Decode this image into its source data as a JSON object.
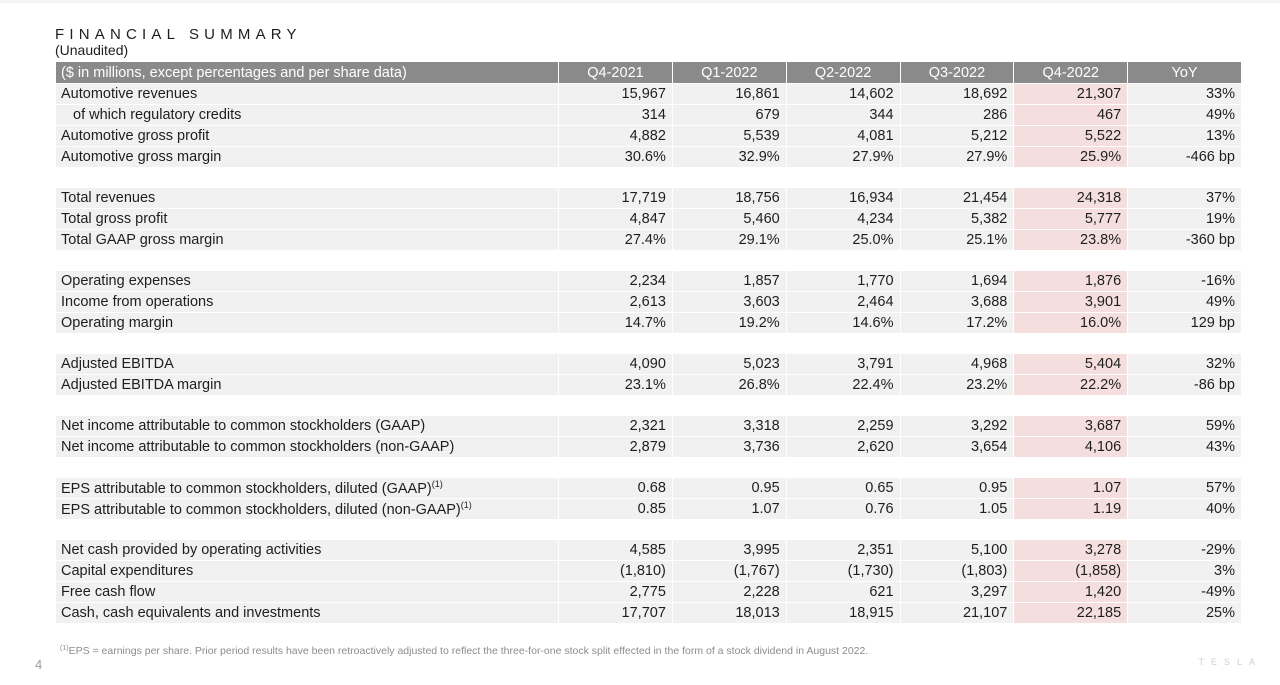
{
  "header": {
    "title": "FINANCIAL SUMMARY",
    "subtitle": "(Unaudited)"
  },
  "table": {
    "columns": [
      "($ in millions, except percentages and per share data)",
      "Q4-2021",
      "Q1-2022",
      "Q2-2022",
      "Q3-2022",
      "Q4-2022",
      "YoY"
    ],
    "highlight_color": "#f4dfde",
    "header_color": "#8a8a8a",
    "groups": [
      {
        "rows": [
          {
            "label": "Automotive revenues",
            "values": [
              "15,967",
              "16,861",
              "14,602",
              "18,692",
              "21,307",
              "33%"
            ]
          },
          {
            "label": "of which regulatory credits",
            "indent": true,
            "values": [
              "314",
              "679",
              "344",
              "286",
              "467",
              "49%"
            ]
          },
          {
            "label": "Automotive gross profit",
            "values": [
              "4,882",
              "5,539",
              "4,081",
              "5,212",
              "5,522",
              "13%"
            ]
          },
          {
            "label": "Automotive gross margin",
            "values": [
              "30.6%",
              "32.9%",
              "27.9%",
              "27.9%",
              "25.9%",
              "-466 bp"
            ]
          }
        ]
      },
      {
        "rows": [
          {
            "label": "Total revenues",
            "values": [
              "17,719",
              "18,756",
              "16,934",
              "21,454",
              "24,318",
              "37%"
            ]
          },
          {
            "label": "Total gross profit",
            "values": [
              "4,847",
              "5,460",
              "4,234",
              "5,382",
              "5,777",
              "19%"
            ]
          },
          {
            "label": "Total GAAP gross margin",
            "values": [
              "27.4%",
              "29.1%",
              "25.0%",
              "25.1%",
              "23.8%",
              "-360 bp"
            ]
          }
        ]
      },
      {
        "rows": [
          {
            "label": "Operating expenses",
            "values": [
              "2,234",
              "1,857",
              "1,770",
              "1,694",
              "1,876",
              "-16%"
            ]
          },
          {
            "label": "Income from operations",
            "values": [
              "2,613",
              "3,603",
              "2,464",
              "3,688",
              "3,901",
              "49%"
            ]
          },
          {
            "label": "Operating margin",
            "values": [
              "14.7%",
              "19.2%",
              "14.6%",
              "17.2%",
              "16.0%",
              "129 bp"
            ]
          }
        ]
      },
      {
        "rows": [
          {
            "label": "Adjusted EBITDA",
            "values": [
              "4,090",
              "5,023",
              "3,791",
              "4,968",
              "5,404",
              "32%"
            ]
          },
          {
            "label": "Adjusted EBITDA margin",
            "values": [
              "23.1%",
              "26.8%",
              "22.4%",
              "23.2%",
              "22.2%",
              "-86 bp"
            ]
          }
        ]
      },
      {
        "rows": [
          {
            "label": "Net income attributable to common stockholders (GAAP)",
            "values": [
              "2,321",
              "3,318",
              "2,259",
              "3,292",
              "3,687",
              "59%"
            ]
          },
          {
            "label": "Net income attributable to common stockholders (non-GAAP)",
            "values": [
              "2,879",
              "3,736",
              "2,620",
              "3,654",
              "4,106",
              "43%"
            ]
          }
        ]
      },
      {
        "rows": [
          {
            "label": "EPS attributable to common stockholders, diluted (GAAP)",
            "sup": "(1)",
            "values": [
              "0.68",
              "0.95",
              "0.65",
              "0.95",
              "1.07",
              "57%"
            ]
          },
          {
            "label": "EPS attributable to common stockholders, diluted (non-GAAP)",
            "sup": "(1)",
            "values": [
              "0.85",
              "1.07",
              "0.76",
              "1.05",
              "1.19",
              "40%"
            ]
          }
        ]
      },
      {
        "rows": [
          {
            "label": "Net cash provided by operating activities",
            "values": [
              "4,585",
              "3,995",
              "2,351",
              "5,100",
              "3,278",
              "-29%"
            ]
          },
          {
            "label": "Capital expenditures",
            "values": [
              "(1,810)",
              "(1,767)",
              "(1,730)",
              "(1,803)",
              "(1,858)",
              "3%"
            ]
          },
          {
            "label": "Free cash flow",
            "values": [
              "2,775",
              "2,228",
              "621",
              "3,297",
              "1,420",
              "-49%"
            ]
          },
          {
            "label": "Cash, cash equivalents and investments",
            "values": [
              "17,707",
              "18,013",
              "18,915",
              "21,107",
              "22,185",
              "25%"
            ]
          }
        ]
      }
    ]
  },
  "footnote": {
    "marker": "(1)",
    "text": "EPS = earnings per share. Prior period results have been retroactively adjusted to reflect the three-for-one stock split effected in the form of a stock dividend in August 2022."
  },
  "page_number": "4",
  "brand": "TESLA"
}
